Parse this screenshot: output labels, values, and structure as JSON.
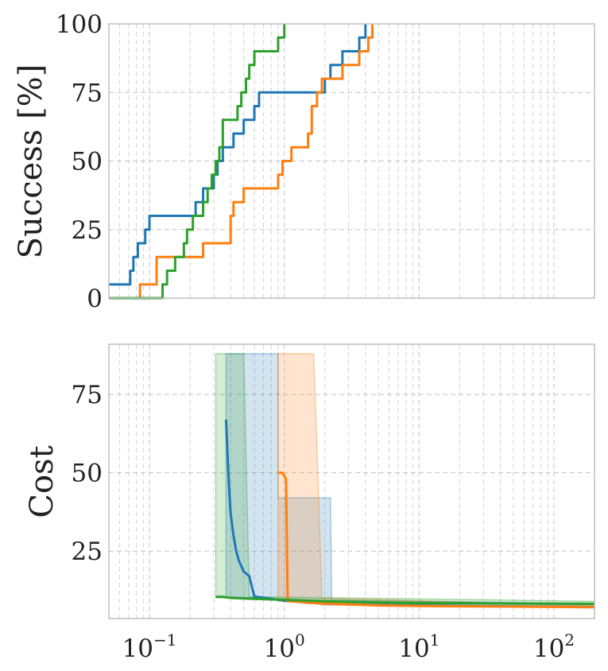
{
  "chart_data": [
    {
      "type": "line",
      "ylabel": "Success [%]",
      "xscale": "log",
      "xlim": [
        0.05,
        200
      ],
      "ylim": [
        0,
        100
      ],
      "yticks": [
        0,
        25,
        50,
        75,
        100
      ],
      "ytick_labels": [
        "0",
        "25",
        "50",
        "75",
        "100"
      ],
      "grid": true,
      "series": [
        {
          "color": "#1f77b4",
          "x": [
            0.05,
            0.068,
            0.072,
            0.076,
            0.082,
            0.089,
            0.093,
            0.1,
            0.2,
            0.22,
            0.25,
            0.3,
            0.32,
            0.35,
            0.38,
            0.42,
            0.46,
            0.5,
            0.55,
            0.6,
            0.65,
            0.75,
            0.85,
            0.95,
            1.0,
            2.0,
            2.2,
            2.7,
            3.3,
            3.6,
            4.0
          ],
          "y": [
            5,
            5,
            10,
            15,
            20,
            20,
            25,
            30,
            30,
            35,
            40,
            45,
            50,
            55,
            55,
            60,
            60,
            65,
            65,
            70,
            75,
            75,
            75,
            75,
            75,
            80,
            85,
            90,
            90,
            95,
            100
          ]
        },
        {
          "color": "#ff7f0e",
          "x": [
            0.05,
            0.085,
            0.1,
            0.113,
            0.12,
            0.22,
            0.25,
            0.27,
            0.31,
            0.4,
            0.42,
            0.46,
            0.5,
            0.9,
            0.97,
            1.13,
            1.5,
            1.6,
            1.75,
            1.9,
            2.3,
            2.7,
            3.2,
            3.6,
            4.2,
            4.5
          ],
          "y": [
            0,
            5,
            5,
            15,
            15,
            15,
            20,
            20,
            20,
            30,
            35,
            35,
            40,
            45,
            50,
            55,
            60,
            70,
            75,
            80,
            80,
            85,
            85,
            90,
            95,
            100
          ]
        },
        {
          "color": "#2ca02c",
          "x": [
            0.05,
            0.122,
            0.125,
            0.135,
            0.15,
            0.155,
            0.18,
            0.19,
            0.21,
            0.25,
            0.27,
            0.29,
            0.31,
            0.33,
            0.35,
            0.45,
            0.48,
            0.52,
            0.55,
            0.6,
            0.7,
            0.8,
            0.9,
            1.0
          ],
          "y": [
            0,
            0,
            5,
            10,
            10,
            15,
            20,
            25,
            30,
            35,
            40,
            45,
            50,
            55,
            65,
            70,
            75,
            80,
            85,
            90,
            90,
            90,
            95,
            100
          ]
        }
      ]
    },
    {
      "type": "line",
      "ylabel": "Cost",
      "xscale": "log",
      "xlim": [
        0.05,
        200
      ],
      "ylim": [
        3.5,
        91
      ],
      "yticks": [
        25,
        50,
        75
      ],
      "ytick_labels": [
        "25",
        "50",
        "75"
      ],
      "xticks": [
        0.1,
        1,
        10,
        100
      ],
      "xtick_labels": [
        {
          "base": "10",
          "exp": "−1"
        },
        {
          "base": "10",
          "exp": "0"
        },
        {
          "base": "10",
          "exp": "1"
        },
        {
          "base": "10",
          "exp": "2"
        }
      ],
      "grid": true,
      "series": [
        {
          "color": "#1f77b4",
          "x": [
            0.37,
            0.38,
            0.39,
            0.4,
            0.42,
            0.44,
            0.46,
            0.5,
            0.55,
            0.6,
            0.8,
            1.0,
            1.5,
            2.0,
            5.0,
            20.0,
            200.0
          ],
          "y": [
            67,
            55,
            45,
            37,
            30,
            25,
            22,
            18.5,
            17,
            10.5,
            9.8,
            9.2,
            8.6,
            8.2,
            7.8,
            7.5,
            7.2
          ],
          "band": {
            "x": [
              0.37,
              0.9,
              0.9,
              2.2,
              2.25,
              200
            ],
            "lower": [
              10.5,
              9.8,
              9.6,
              8.5,
              8.0,
              7.2
            ],
            "upper": [
              88,
              88,
              42,
              42,
              9.5,
              8.2
            ]
          }
        },
        {
          "color": "#ff7f0e",
          "x": [
            0.9,
            0.97,
            1.03,
            1.06,
            1.2,
            1.5,
            2.0,
            3.0,
            5.0,
            10.0,
            50.0,
            200.0
          ],
          "y": [
            50,
            50,
            48,
            9.0,
            9.0,
            8.5,
            8.3,
            8.0,
            7.7,
            7.5,
            7.3,
            7.1
          ],
          "band": {
            "x": [
              0.9,
              1.65,
              1.8,
              1.9,
              200
            ],
            "lower": [
              9.0,
              8.5,
              8.2,
              7.8,
              6.9
            ],
            "upper": [
              88,
              88,
              42,
              10,
              7.6
            ]
          }
        },
        {
          "color": "#2ca02c",
          "x": [
            0.31,
            0.35,
            0.4,
            0.45,
            0.5,
            0.6,
            0.8,
            1.0,
            2.0,
            5.0,
            10.0,
            50.0,
            200.0
          ],
          "y": [
            10.4,
            10.4,
            10.1,
            10.0,
            9.9,
            9.8,
            9.6,
            9.5,
            9.0,
            8.6,
            8.4,
            8.3,
            8.2
          ],
          "band": {
            "x": [
              0.31,
              0.5,
              0.55,
              200
            ],
            "lower": [
              10.2,
              9.8,
              9.6,
              8.0
            ],
            "upper": [
              88,
              88,
              10.5,
              9.0
            ]
          }
        }
      ]
    }
  ]
}
